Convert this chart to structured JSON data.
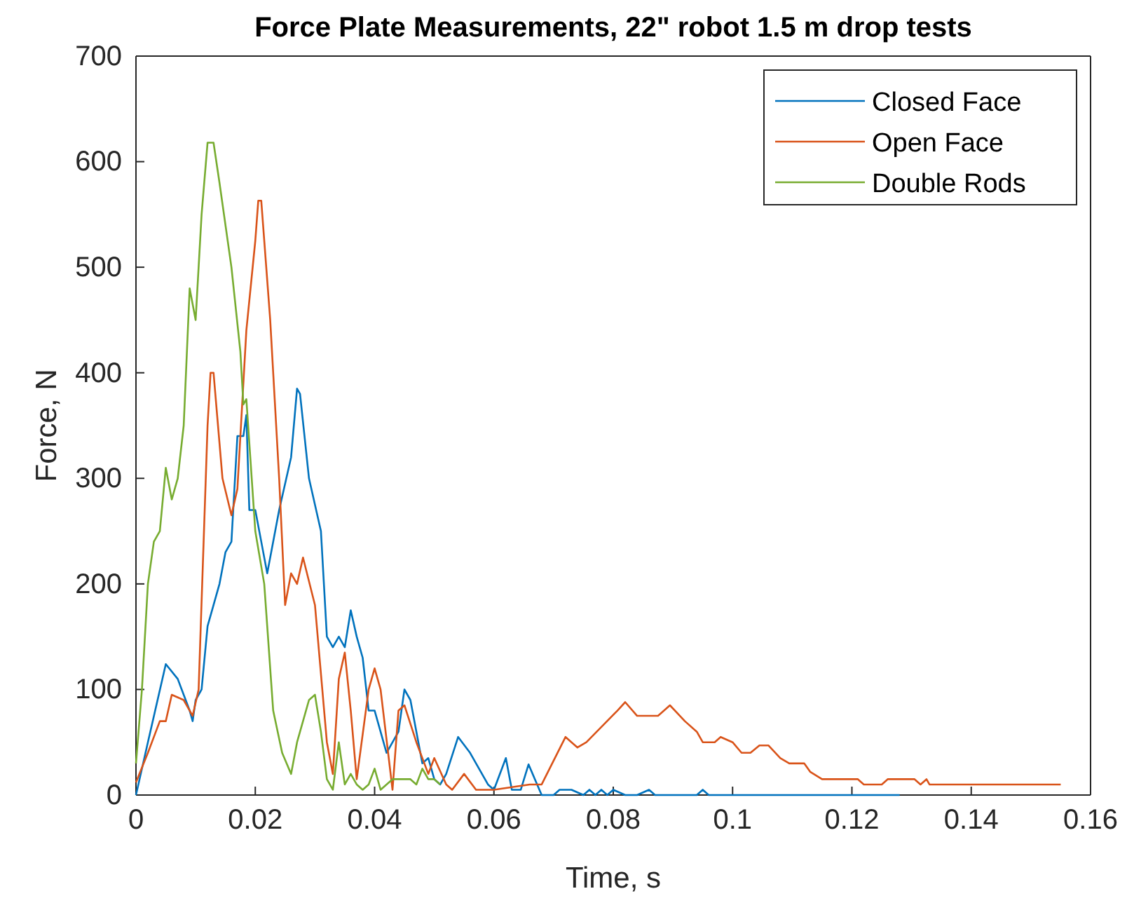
{
  "chart_data": {
    "type": "line",
    "title": "Force Plate Measurements, 22\" robot 1.5 m drop tests",
    "xlabel": "Time, s",
    "ylabel": "Force, N",
    "xlim": [
      0,
      0.16
    ],
    "ylim": [
      0,
      700
    ],
    "xticks": [
      0,
      0.02,
      0.04,
      0.06,
      0.08,
      0.1,
      0.12,
      0.14,
      0.16
    ],
    "yticks": [
      0,
      100,
      200,
      300,
      400,
      500,
      600,
      700
    ],
    "grid": false,
    "legend": "top right",
    "marker": "none",
    "line_style": "solid",
    "series": [
      {
        "name": "Closed Face",
        "color": "#0072bd",
        "x": [
          0,
          0.002,
          0.005,
          0.007,
          0.009,
          0.0095,
          0.01,
          0.011,
          0.012,
          0.014,
          0.015,
          0.016,
          0.017,
          0.018,
          0.0185,
          0.019,
          0.02,
          0.021,
          0.022,
          0.024,
          0.026,
          0.027,
          0.0275,
          0.029,
          0.031,
          0.032,
          0.033,
          0.034,
          0.035,
          0.036,
          0.037,
          0.038,
          0.039,
          0.04,
          0.042,
          0.044,
          0.045,
          0.046,
          0.047,
          0.048,
          0.049,
          0.05,
          0.051,
          0.052,
          0.054,
          0.056,
          0.057,
          0.059,
          0.06,
          0.062,
          0.063,
          0.0645,
          0.0658,
          0.068,
          0.07,
          0.071,
          0.073,
          0.075,
          0.076,
          0.077,
          0.078,
          0.079,
          0.08,
          0.082,
          0.084,
          0.086,
          0.087,
          0.09,
          0.094,
          0.095,
          0.096,
          0.1,
          0.128
        ],
        "values": [
          0,
          50,
          124,
          110,
          80,
          70,
          90,
          100,
          160,
          200,
          230,
          240,
          340,
          340,
          360,
          270,
          270,
          240,
          210,
          270,
          320,
          385,
          380,
          300,
          250,
          150,
          140,
          150,
          140,
          175,
          150,
          130,
          80,
          80,
          40,
          60,
          100,
          90,
          60,
          30,
          35,
          15,
          10,
          20,
          55,
          40,
          30,
          10,
          5,
          35,
          5,
          5,
          29,
          0,
          0,
          5,
          5,
          0,
          5,
          0,
          5,
          0,
          5,
          0,
          0,
          5,
          0,
          0,
          0,
          5,
          0,
          0,
          0
        ]
      },
      {
        "name": "Open Face",
        "color": "#d95319",
        "x": [
          0,
          0.002,
          0.004,
          0.005,
          0.006,
          0.008,
          0.0095,
          0.0105,
          0.012,
          0.0125,
          0.013,
          0.0145,
          0.016,
          0.017,
          0.0185,
          0.02,
          0.0205,
          0.021,
          0.0225,
          0.024,
          0.025,
          0.026,
          0.027,
          0.028,
          0.03,
          0.032,
          0.033,
          0.034,
          0.035,
          0.036,
          0.037,
          0.039,
          0.04,
          0.041,
          0.043,
          0.044,
          0.045,
          0.047,
          0.049,
          0.05,
          0.052,
          0.053,
          0.055,
          0.057,
          0.06,
          0.066,
          0.068,
          0.072,
          0.074,
          0.0755,
          0.0807,
          0.082,
          0.084,
          0.0875,
          0.0895,
          0.092,
          0.094,
          0.095,
          0.097,
          0.098,
          0.1,
          0.1015,
          0.103,
          0.1045,
          0.106,
          0.108,
          0.1095,
          0.112,
          0.113,
          0.115,
          0.121,
          0.122,
          0.125,
          0.126,
          0.1305,
          0.1315,
          0.1325,
          0.133,
          0.155
        ],
        "values": [
          12,
          40,
          70,
          70,
          95,
          90,
          75,
          100,
          350,
          400,
          400,
          300,
          265,
          290,
          440,
          525,
          563,
          563,
          450,
          300,
          180,
          210,
          200,
          225,
          180,
          50,
          20,
          110,
          135,
          80,
          15,
          100,
          120,
          100,
          5,
          80,
          85,
          50,
          20,
          35,
          10,
          5,
          20,
          5,
          5,
          10,
          10,
          55,
          45,
          50,
          80,
          88,
          75,
          75,
          85,
          70,
          60,
          50,
          50,
          55,
          50,
          40,
          40,
          47,
          47,
          35,
          30,
          30,
          22,
          15,
          15,
          10,
          10,
          15,
          15,
          10,
          15,
          10,
          10
        ]
      },
      {
        "name": "Double Rods",
        "color": "#77ac30",
        "x": [
          0,
          0.001,
          0.002,
          0.003,
          0.004,
          0.005,
          0.006,
          0.007,
          0.008,
          0.009,
          0.01,
          0.011,
          0.012,
          0.013,
          0.014,
          0.016,
          0.0175,
          0.018,
          0.0185,
          0.02,
          0.0215,
          0.022,
          0.023,
          0.0245,
          0.026,
          0.027,
          0.029,
          0.03,
          0.031,
          0.032,
          0.033,
          0.034,
          0.035,
          0.036,
          0.037,
          0.038,
          0.039,
          0.04,
          0.041,
          0.043,
          0.046,
          0.047,
          0.048,
          0.049,
          0.05,
          0.051
        ],
        "values": [
          30,
          100,
          200,
          240,
          250,
          310,
          280,
          300,
          350,
          480,
          450,
          550,
          618,
          618,
          580,
          500,
          420,
          370,
          375,
          250,
          200,
          160,
          80,
          40,
          20,
          50,
          90,
          95,
          60,
          15,
          5,
          50,
          10,
          20,
          10,
          5,
          10,
          25,
          5,
          15,
          15,
          10,
          25,
          15,
          15,
          10
        ]
      }
    ]
  }
}
